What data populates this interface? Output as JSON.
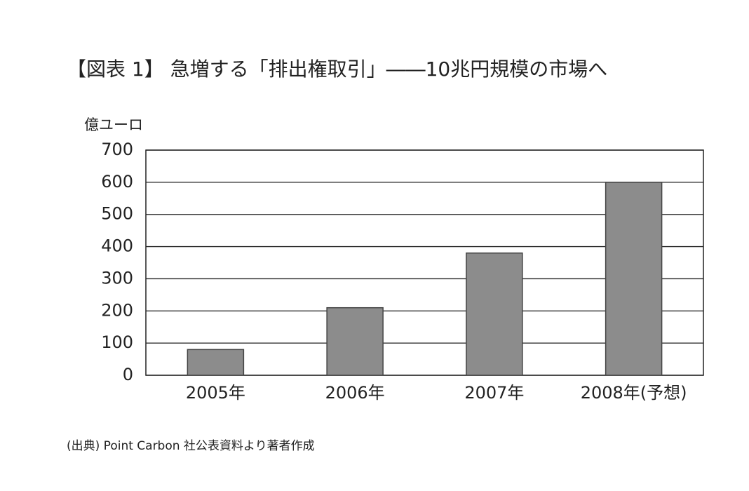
{
  "chart_data": {
    "type": "bar",
    "title": "【図表 1】 急増する「排出権取引」――10兆円規模の市場へ",
    "y_label": "億ユーロ",
    "categories": [
      "2005年",
      "2006年",
      "2007年",
      "2008年(予想)"
    ],
    "values": [
      80,
      210,
      380,
      600
    ],
    "color": "#8c8c8c",
    "ylim": [
      0,
      700
    ],
    "yticks": [
      0,
      100,
      200,
      300,
      400,
      500,
      600,
      700
    ],
    "grid": true,
    "source": "(出典) Point Carbon 社公表資料より著者作成"
  }
}
